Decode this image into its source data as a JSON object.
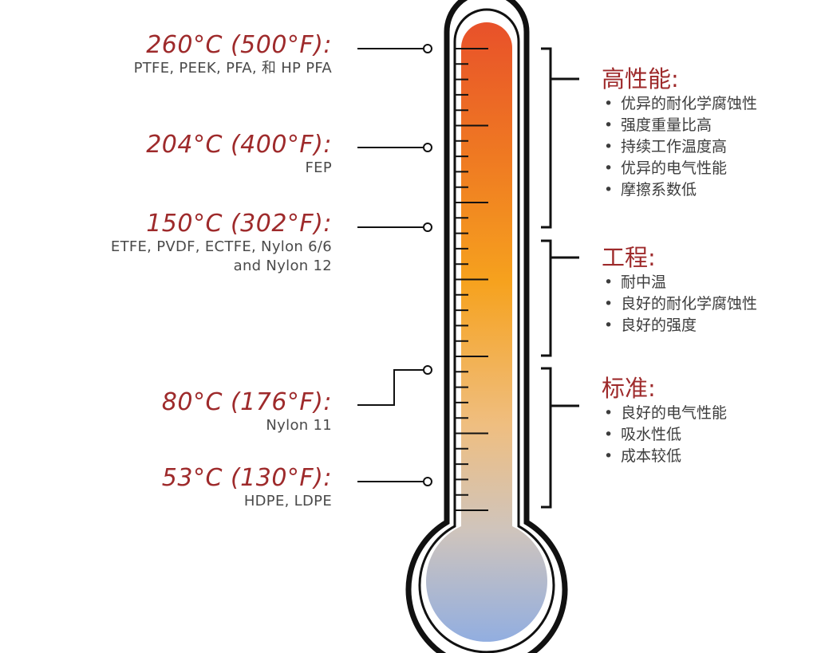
{
  "temperatures": [
    {
      "temp": "260°C (500°F):",
      "materials": [
        "PTFE, PEEK, PFA, 和 HP PFA"
      ]
    },
    {
      "temp": "204°C (400°F):",
      "materials": [
        "FEP"
      ]
    },
    {
      "temp": "150°C (302°F):",
      "materials": [
        "ETFE, PVDF, ECTFE, Nylon 6/6",
        "and Nylon 12"
      ]
    },
    {
      "temp": "80°C (176°F):",
      "materials": [
        "Nylon 11"
      ]
    },
    {
      "temp": "53°C (130°F):",
      "materials": [
        "HDPE, LDPE"
      ]
    }
  ],
  "categories": [
    {
      "title": "高性能:",
      "items": [
        "优异的耐化学腐蚀性",
        "强度重量比高",
        "持续工作温度高",
        "优异的电气性能",
        "摩擦系数低"
      ]
    },
    {
      "title": "工程:",
      "items": [
        "耐中温",
        "良好的耐化学腐蚀性",
        "良好的强度"
      ]
    },
    {
      "title": "标准:",
      "items": [
        "良好的电气性能",
        "吸水性低",
        "成本较低"
      ]
    }
  ],
  "colors": {
    "accent": "#9e2a2b",
    "text": "#4a4a4a",
    "outline": "#111111",
    "gradient_top": "#e8512a",
    "gradient_mid": "#f6a21e",
    "gradient_light": "#efbe80",
    "gradient_bottom": "#92aee0"
  }
}
